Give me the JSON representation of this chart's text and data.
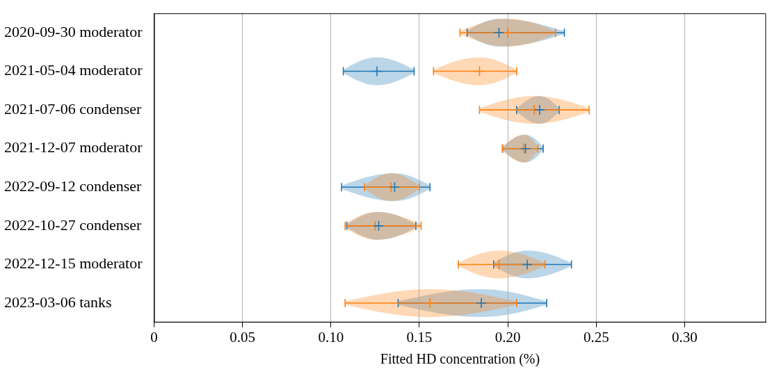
{
  "chart_data": {
    "type": "scatter",
    "orientation": "horizontal",
    "marker": "cross",
    "xlabel": "Fitted HD concentration (%)",
    "categories": [
      "2020-09-30 moderator",
      "2021-05-04 moderator",
      "2021-07-06 condenser",
      "2021-12-07 moderator",
      "2022-09-12 condenser",
      "2022-10-27 condenser",
      "2022-12-15 moderator",
      "2023-03-06 tanks"
    ],
    "xlim": [
      0,
      0.346
    ],
    "xticks": [
      0,
      0.05,
      {
        "value": 0.1,
        "label": "0.10"
      },
      0.15,
      {
        "value": 0.2,
        "label": "0.20"
      },
      0.25,
      {
        "value": 0.3,
        "label": "0.30"
      }
    ],
    "grid": "x",
    "series": [
      {
        "color": "#1f77b4",
        "values": [
          0.195,
          0.126,
          0.218,
          0.21,
          0.136,
          0.127,
          0.211,
          0.185
        ],
        "errors": [
          [
            0.177,
            0.232
          ],
          [
            0.107,
            0.147
          ],
          [
            0.205,
            0.229
          ],
          [
            0.197,
            0.22
          ],
          [
            0.106,
            0.156
          ],
          [
            0.109,
            0.148
          ],
          [
            0.192,
            0.236
          ],
          [
            0.138,
            0.222
          ]
        ]
      },
      {
        "color": "#ff7f0e",
        "values": [
          0.2,
          0.184,
          0.215,
          0.209,
          0.134,
          0.125,
          0.195,
          0.156
        ],
        "errors": [
          [
            0.173,
            0.227
          ],
          [
            0.158,
            0.205
          ],
          [
            0.184,
            0.246
          ],
          [
            0.197,
            0.217
          ],
          [
            0.119,
            0.15
          ],
          [
            0.108,
            0.151
          ],
          [
            0.172,
            0.221
          ],
          [
            0.108,
            0.205
          ]
        ]
      }
    ]
  }
}
